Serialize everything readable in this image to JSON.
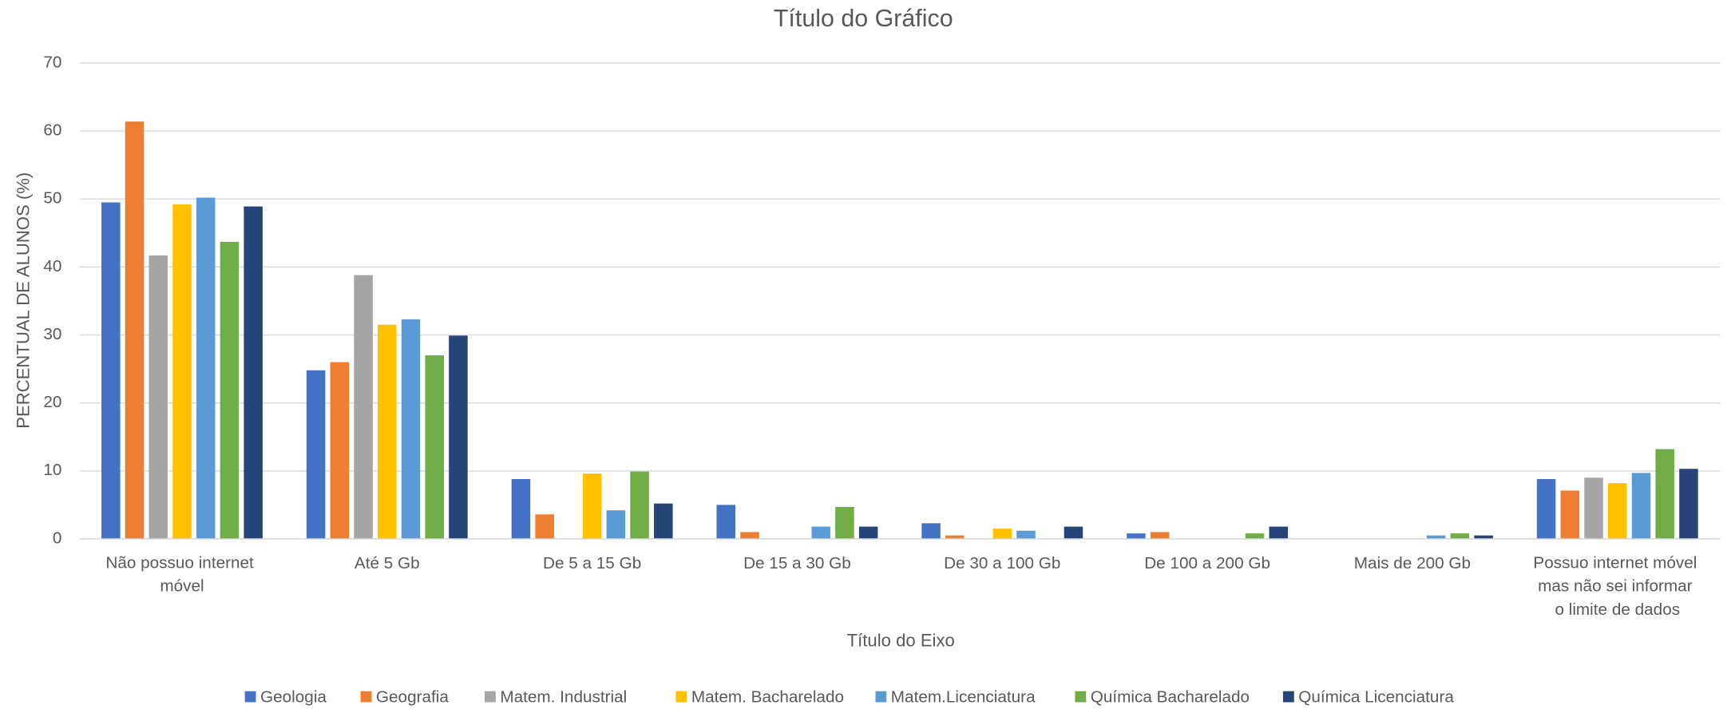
{
  "chart_data": {
    "type": "bar",
    "title": "Título do Gráfico",
    "x_label": "Título do Eixo",
    "y_label": "PERCENTUAL DE ALUNOS (%)",
    "categories": [
      "Não possuo internet móvel",
      "Até 5 Gb",
      "De 5 a 15 Gb",
      "De 15 a 30 Gb",
      "De 30 a 100 Gb",
      "De 100 a 200 Gb",
      "Mais de 200 Gb",
      "Possuo internet móvel mas não sei informar o limite de dados"
    ],
    "series": [
      {
        "name": "Geologia",
        "color": "#4472c4",
        "values": [
          49.5,
          24.8,
          8.8,
          5.0,
          2.3,
          0.8,
          0,
          8.8
        ]
      },
      {
        "name": "Geografia",
        "color": "#ed7d31",
        "values": [
          61.4,
          26.0,
          3.6,
          1.0,
          0.5,
          1.0,
          0,
          7.1
        ]
      },
      {
        "name": "Matem. Industrial",
        "color": "#a5a5a5",
        "values": [
          41.7,
          38.8,
          0,
          0,
          0,
          0,
          0,
          9.0
        ]
      },
      {
        "name": "Matem. Bacharelado",
        "color": "#ffc000",
        "values": [
          49.2,
          31.5,
          9.6,
          0,
          1.5,
          0,
          0,
          8.2
        ]
      },
      {
        "name": "Matem.Licenciatura",
        "color": "#5b9bd5",
        "values": [
          50.2,
          32.3,
          4.2,
          1.8,
          1.2,
          0,
          0.5,
          9.7
        ]
      },
      {
        "name": "Química Bacharelado",
        "color": "#70ad47",
        "values": [
          43.7,
          27.0,
          9.9,
          4.7,
          0,
          0.8,
          0.8,
          13.2
        ]
      },
      {
        "name": "Química Licenciatura",
        "color": "#264478",
        "values": [
          48.9,
          29.9,
          5.2,
          1.8,
          1.8,
          1.8,
          0.5,
          10.3
        ]
      }
    ],
    "ylim": [
      0,
      70
    ],
    "yticks": [
      0,
      10,
      20,
      30,
      40,
      50,
      60,
      70
    ],
    "grid": true,
    "legend": "bottom"
  }
}
